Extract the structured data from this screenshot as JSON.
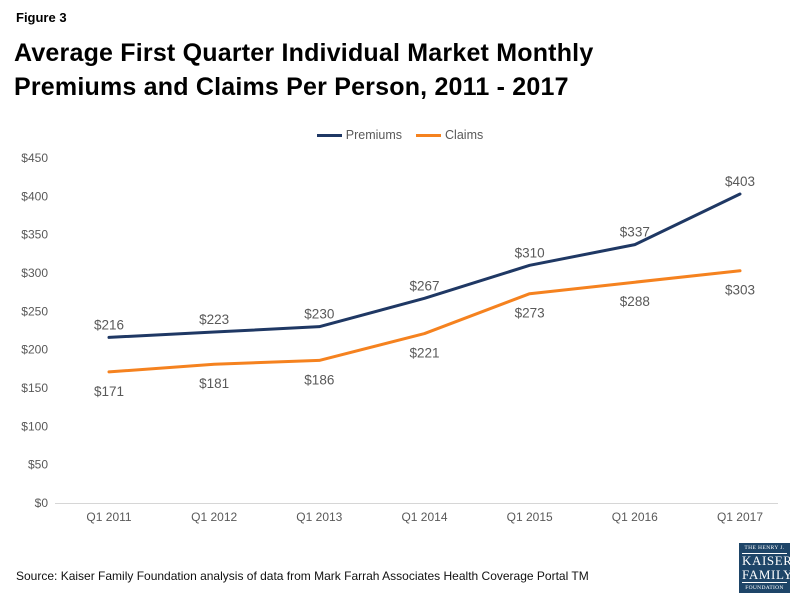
{
  "figure_label": "Figure 3",
  "title": {
    "line1": "Average First Quarter Individual Market Monthly",
    "line2": "Premiums and Claims Per Person, 2011 - 2017"
  },
  "legend": [
    {
      "label": "Premiums",
      "color": "#1F3864"
    },
    {
      "label": "Claims",
      "color": "#F5821F"
    }
  ],
  "chart_data": {
    "type": "line",
    "title": "Average First Quarter Individual Market Monthly Premiums and Claims Per Person, 2011 - 2017",
    "categories": [
      "Q1 2011",
      "Q1 2012",
      "Q1 2013",
      "Q1 2014",
      "Q1 2015",
      "Q1 2016",
      "Q1 2017"
    ],
    "series": [
      {
        "name": "Premiums",
        "color": "#1F3864",
        "values": [
          216,
          223,
          230,
          267,
          310,
          337,
          403
        ],
        "label_position": "above"
      },
      {
        "name": "Claims",
        "color": "#F5821F",
        "values": [
          171,
          181,
          186,
          221,
          273,
          288,
          303
        ],
        "label_position": "below"
      }
    ],
    "value_prefix": "$",
    "y_ticks": [
      0,
      50,
      100,
      150,
      200,
      250,
      300,
      350,
      400,
      450
    ],
    "ylim": [
      0,
      450
    ],
    "xlabel": "",
    "ylabel": "",
    "grid": false,
    "legend_position": "top",
    "data_labels": true
  },
  "source": "Source: Kaiser Family Foundation analysis of data from Mark Farrah Associates Health Coverage Portal TM",
  "logo": {
    "line1": "THE HENRY J.",
    "line2": "KAISER",
    "line3": "FAMILY",
    "line4": "FOUNDATION",
    "bg_color": "#1E4568"
  },
  "colors": {
    "tick_label": "#595959",
    "data_label": "#595959",
    "axis_line": "#D6D6D6",
    "title_text": "#000000"
  }
}
